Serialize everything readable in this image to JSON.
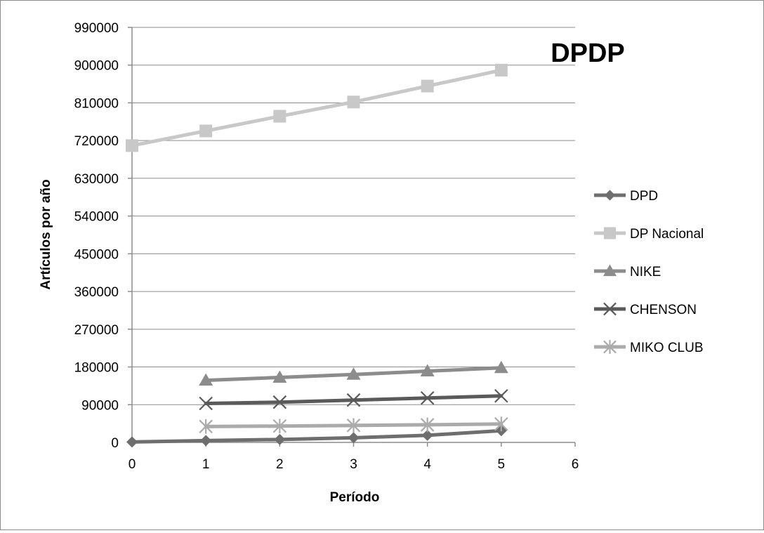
{
  "chart_data": {
    "type": "line",
    "title": "DPDP",
    "xlabel": "Período",
    "ylabel": "Artículos por año",
    "xlim": [
      0,
      6
    ],
    "ylim": [
      0,
      990000
    ],
    "xticks": [
      "0",
      "1",
      "2",
      "3",
      "4",
      "5",
      "6"
    ],
    "yticks": [
      "0",
      "90000",
      "180000",
      "270000",
      "360000",
      "450000",
      "540000",
      "630000",
      "720000",
      "810000",
      "900000",
      "990000"
    ],
    "grid": "horizontal",
    "legend_position": "right",
    "series": [
      {
        "name": "DPD",
        "color": "#6e6e6e",
        "marker": "diamond",
        "x": [
          0,
          1,
          2,
          3,
          4,
          5
        ],
        "y": [
          1000,
          4500,
          7000,
          11000,
          17000,
          28000
        ]
      },
      {
        "name": "DP Nacional",
        "color": "#c8c8c8",
        "marker": "square",
        "x": [
          0,
          1,
          2,
          3,
          4,
          5
        ],
        "y": [
          708000,
          743000,
          778000,
          812000,
          850000,
          888000
        ]
      },
      {
        "name": "NIKE",
        "color": "#8c8c8c",
        "marker": "triangle",
        "x": [
          1,
          2,
          3,
          4,
          5
        ],
        "y": [
          148000,
          155000,
          162000,
          170000,
          178000
        ]
      },
      {
        "name": "CHENSON",
        "color": "#5a5a5a",
        "marker": "x",
        "x": [
          1,
          2,
          3,
          4,
          5
        ],
        "y": [
          93000,
          96000,
          101000,
          106000,
          111000
        ]
      },
      {
        "name": "MIKO CLUB",
        "color": "#ababab",
        "marker": "star",
        "x": [
          1,
          2,
          3,
          4,
          5
        ],
        "y": [
          38000,
          39000,
          40500,
          42000,
          44000
        ]
      }
    ]
  }
}
